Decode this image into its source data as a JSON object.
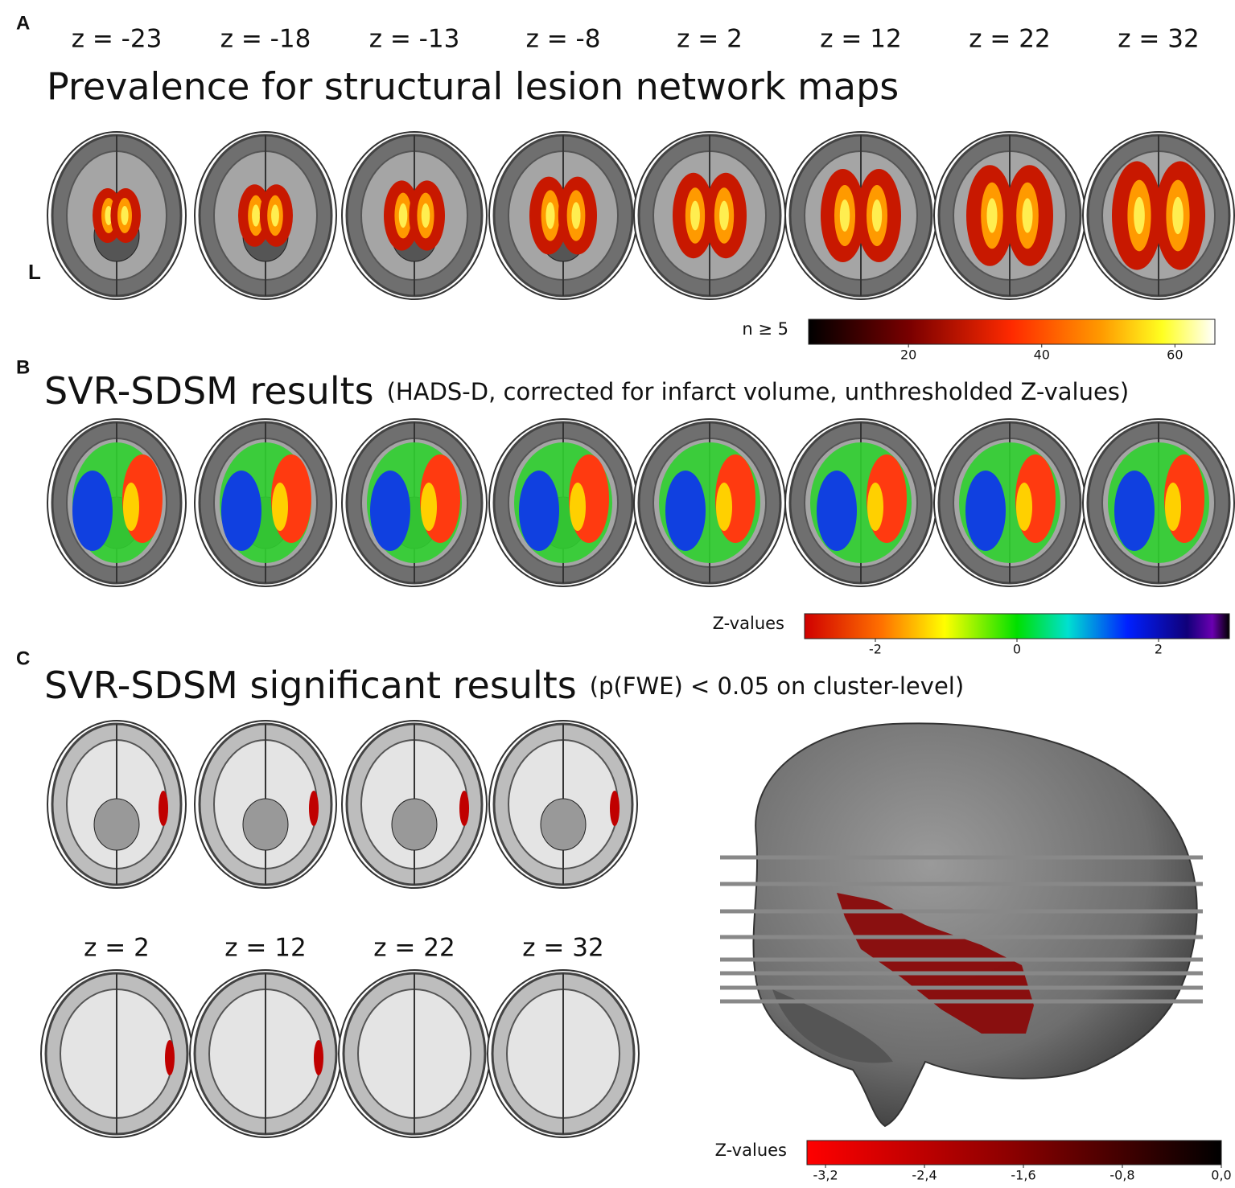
{
  "panels": [
    {
      "letter": "A",
      "slice_labels": [
        "z = -23",
        "z = -18",
        "z = -13",
        "z = -8",
        "z = 2",
        "z = 12",
        "z = 22",
        "z = 32"
      ],
      "title": "Prevalence for structural lesion network maps",
      "side_label": "L",
      "colorbar": {
        "label": "n ≥ 5",
        "range": [
          5,
          66
        ],
        "ticks": [
          20,
          40,
          60
        ]
      }
    },
    {
      "letter": "B",
      "title": "SVR-SDSM  results",
      "subtitle": "(HADS-D, corrected for infarct volume, unthresholded Z-values)",
      "colorbar": {
        "label": "Z-values",
        "range": [
          -3,
          3
        ],
        "ticks": [
          -2,
          0,
          2
        ]
      }
    },
    {
      "letter": "C",
      "title": "SVR-SDSM significant results",
      "subtitle": "(p(FWE) < 0.05 on cluster-level)",
      "slice_labels": [
        "z = 2",
        "z = 12",
        "z = 22",
        "z = 32"
      ],
      "colorbar": {
        "label": "Z-values",
        "range": [
          -3.35,
          0
        ],
        "ticks": [
          {
            "value": -3.2,
            "label": "-3,2"
          },
          {
            "value": -2.4,
            "label": "-2,4"
          },
          {
            "value": -1.6,
            "label": "-1,6"
          },
          {
            "value": -0.8,
            "label": "-0,8"
          },
          {
            "value": 0,
            "label": "0,0"
          }
        ]
      }
    }
  ]
}
